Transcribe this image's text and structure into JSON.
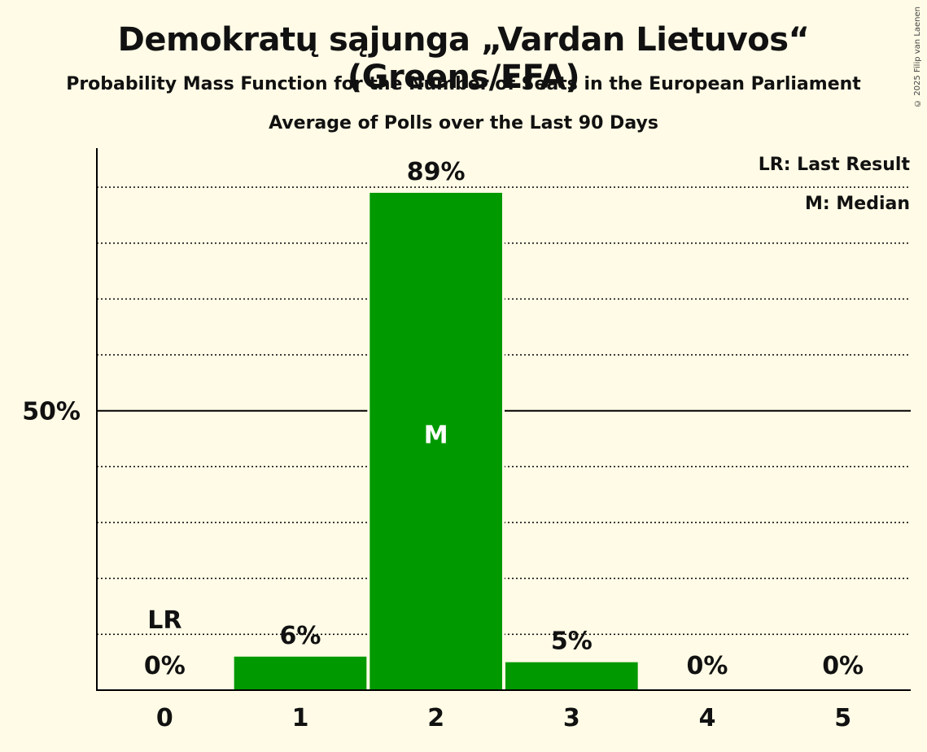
{
  "title": "Demokratų sąjunga „Vardan Lietuvos“ (Greens/EFA)",
  "subtitle": "Probability Mass Function for the Number of Seats in the European Parliament",
  "subtitle2": "Average of Polls over the Last 90 Days",
  "copyright": "© 2025 Filip van Laenen",
  "legend": {
    "last_result": "LR: Last Result",
    "median": "M: Median"
  },
  "colors": {
    "bar": "#009900",
    "background": "#fffbe6",
    "axis": "#000000"
  },
  "chart_data": {
    "type": "bar",
    "categories": [
      "0",
      "1",
      "2",
      "3",
      "4",
      "5"
    ],
    "values": [
      0,
      6,
      89,
      5,
      0,
      0
    ],
    "value_labels": [
      "0%",
      "6%",
      "89%",
      "5%",
      "0%",
      "0%"
    ],
    "ylim": [
      0,
      97
    ],
    "y_ticks": [
      {
        "value": 50,
        "label": "50%"
      }
    ],
    "gridlines_dotted": [
      10,
      20,
      30,
      40,
      60,
      70,
      80,
      90
    ],
    "median_category": "2",
    "median_marker": "M",
    "last_result_category": "0",
    "last_result_marker": "LR",
    "legend_placement": "top-right"
  }
}
